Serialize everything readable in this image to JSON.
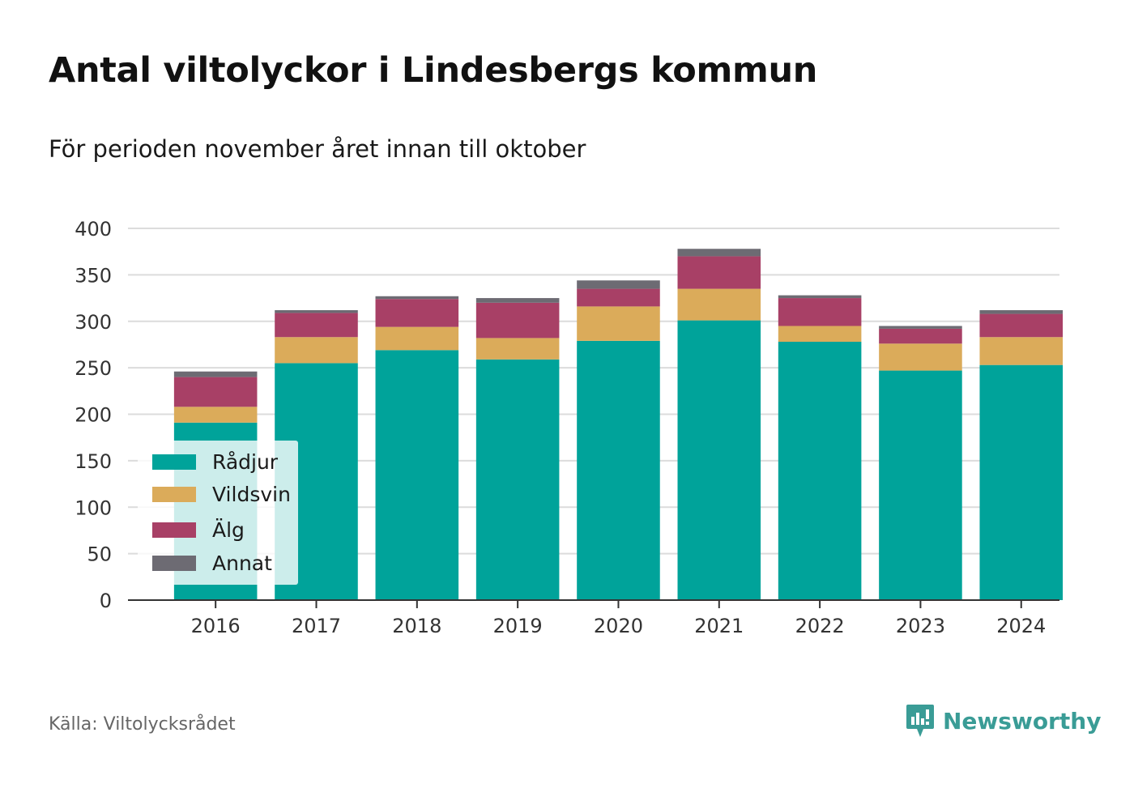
{
  "title": "Antal viltolyckor i Lindesbergs kommun",
  "subtitle": "För perioden november året innan till oktober",
  "source": "Källa: Viltolycksrådet",
  "brand": {
    "name": "Newsworthy",
    "color": "#3a9c96",
    "icon": "chat-bar-chart-icon"
  },
  "chart_data": {
    "type": "bar",
    "stacked": true,
    "categories": [
      "2016",
      "2017",
      "2018",
      "2019",
      "2020",
      "2021",
      "2022",
      "2023",
      "2024"
    ],
    "series": [
      {
        "name": "Rådjur",
        "color": "#00a39a",
        "values": [
          191,
          255,
          269,
          259,
          279,
          301,
          278,
          247,
          253
        ]
      },
      {
        "name": "Vildsvin",
        "color": "#dbab5a",
        "values": [
          17,
          28,
          25,
          23,
          37,
          34,
          17,
          29,
          30
        ]
      },
      {
        "name": "Älg",
        "color": "#a84066",
        "values": [
          32,
          26,
          30,
          38,
          19,
          35,
          30,
          16,
          25
        ]
      },
      {
        "name": "Annat",
        "color": "#6d6b73",
        "values": [
          6,
          3,
          3,
          5,
          9,
          8,
          3,
          3,
          4
        ]
      }
    ],
    "yticks": [
      "0",
      "50",
      "100",
      "150",
      "200",
      "250",
      "300",
      "350",
      "400"
    ],
    "ylim": [
      0,
      400
    ],
    "xlabel": "",
    "ylabel": "",
    "grid": true,
    "legend_position": "bottom-left"
  }
}
